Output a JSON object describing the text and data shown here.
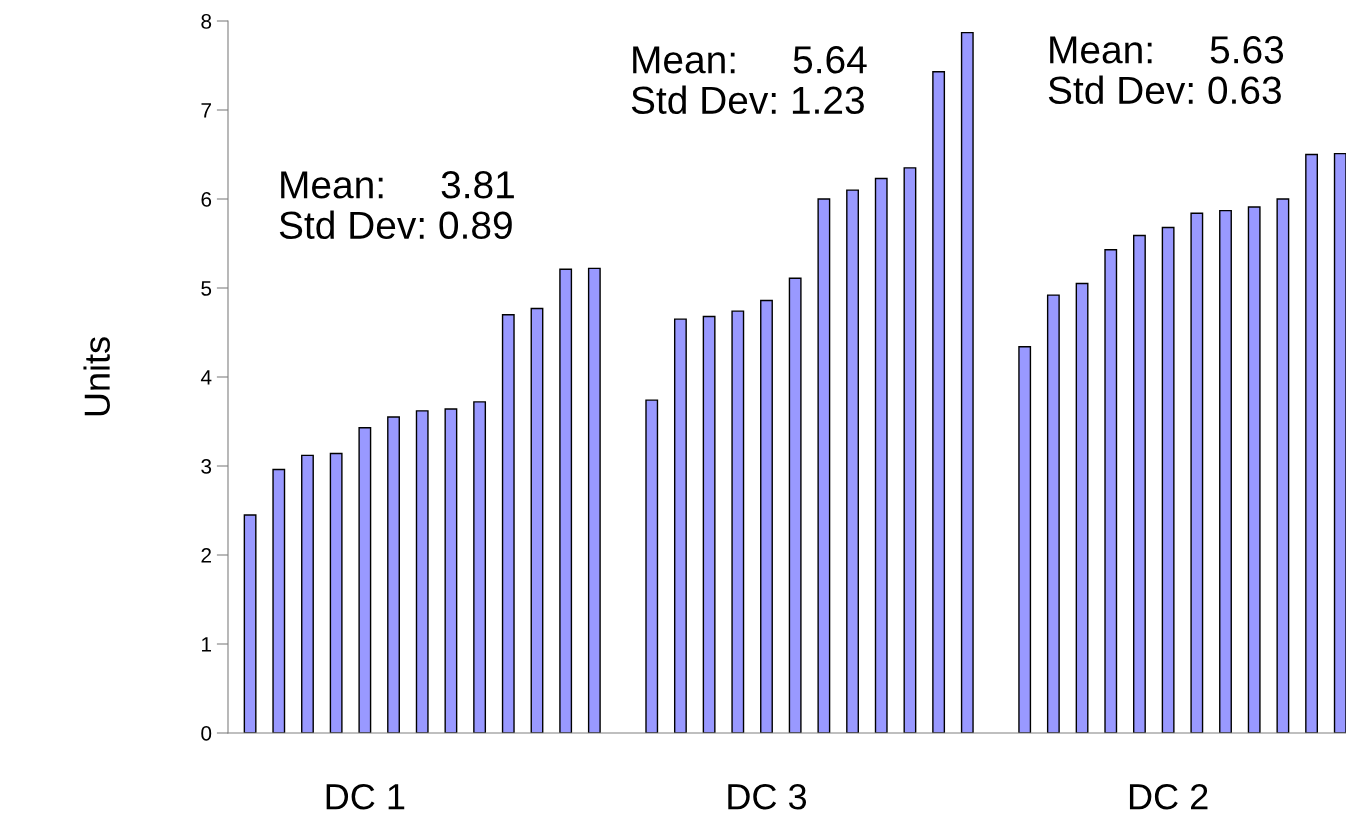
{
  "chart_data": {
    "type": "bar",
    "ylabel": "Units",
    "categories": [
      null,
      null,
      null,
      null,
      "DC 1",
      null,
      null,
      null,
      null,
      null,
      null,
      null,
      null,
      null,
      null,
      null,
      null,
      null,
      "DC 3",
      null,
      null,
      null,
      null,
      null,
      null,
      null,
      null,
      null,
      null,
      null,
      null,
      null,
      "DC 2",
      null,
      null,
      null,
      null,
      null,
      null
    ],
    "values": [
      2.45,
      2.96,
      3.12,
      3.14,
      3.43,
      3.55,
      3.62,
      3.64,
      3.72,
      4.7,
      4.77,
      5.21,
      5.22,
      null,
      3.74,
      4.65,
      4.68,
      4.74,
      4.86,
      5.11,
      6.0,
      6.1,
      6.23,
      6.35,
      7.43,
      7.87,
      null,
      4.34,
      4.92,
      5.05,
      5.43,
      5.59,
      5.68,
      5.84,
      5.87,
      5.91,
      6.0,
      6.5,
      6.51
    ],
    "color": "#9999ff",
    "ylim": [
      0,
      8
    ],
    "yticks": [
      0,
      1,
      2,
      3,
      4,
      5,
      6,
      7,
      8
    ],
    "grid": false,
    "legend": false,
    "annotations": [
      "Mean:     3.81\nStd Dev: 0.89",
      "Mean:     5.64\nStd Dev: 1.23",
      "Mean:     5.63\nStd Dev: 0.63"
    ]
  }
}
